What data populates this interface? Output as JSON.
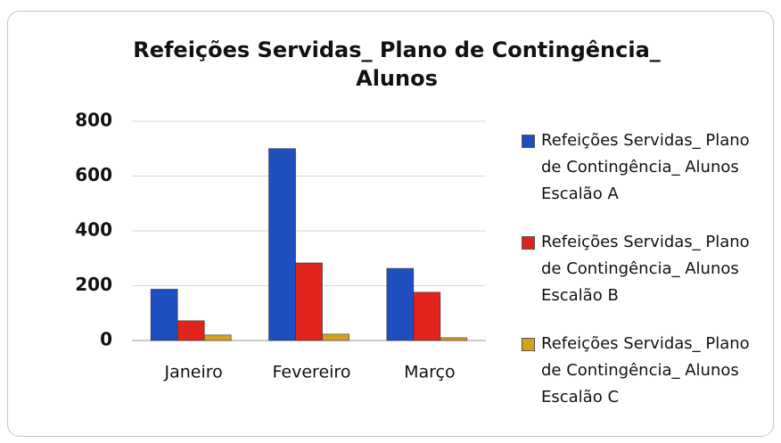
{
  "chart_data": {
    "type": "bar",
    "title": "Refeições Servidas_ Plano de Contingência_ Alunos",
    "categories": [
      "Janeiro",
      "Fevereiro",
      "Março"
    ],
    "series": [
      {
        "name": "Refeições Servidas_ Plano de Contingência_ Alunos Escalão A",
        "color": "#1f4fbf",
        "values": [
          187,
          700,
          263
        ]
      },
      {
        "name": "Refeições Servidas_ Plano de Contingência_ Alunos Escalão B",
        "color": "#e0241c",
        "values": [
          72,
          283,
          176
        ]
      },
      {
        "name": "Refeições Servidas_ Plano de Contingência_ Alunos Escalão C",
        "color": "#d4a020",
        "values": [
          20,
          23,
          10
        ]
      }
    ],
    "ylim": [
      0,
      800
    ],
    "yticks": [
      0,
      200,
      400,
      600,
      800
    ],
    "grid": true
  }
}
